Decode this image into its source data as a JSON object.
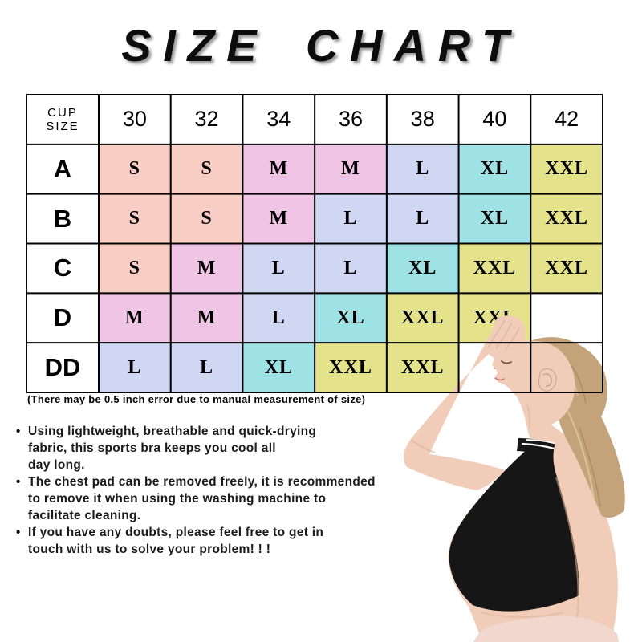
{
  "title": "SIZE CHART",
  "chart_data": {
    "type": "table",
    "title": "SIZE CHART",
    "corner_label": {
      "line1": "CUP",
      "line2": "SIZE"
    },
    "columns": [
      "30",
      "32",
      "34",
      "36",
      "38",
      "40",
      "42"
    ],
    "rows": [
      {
        "cup": "A",
        "cells": [
          "S",
          "S",
          "M",
          "M",
          "L",
          "XL",
          "XXL"
        ]
      },
      {
        "cup": "B",
        "cells": [
          "S",
          "S",
          "M",
          "L",
          "L",
          "XL",
          "XXL"
        ]
      },
      {
        "cup": "C",
        "cells": [
          "S",
          "M",
          "L",
          "L",
          "XL",
          "XXL",
          "XXL"
        ]
      },
      {
        "cup": "D",
        "cells": [
          "M",
          "M",
          "L",
          "XL",
          "XXL",
          "XXL",
          ""
        ]
      },
      {
        "cup": "DD",
        "cells": [
          "L",
          "L",
          "XL",
          "XXL",
          "XXL",
          "",
          ""
        ]
      }
    ],
    "size_colors": {
      "S": "#F8CDC4",
      "M": "#EFC4E4",
      "L": "#CFD7F2",
      "XL": "#9FE2E6",
      "XXL": "#E5E28C"
    }
  },
  "footnote": "(There may be 0.5 inch error due to manual measurement of size)",
  "bullet_char": "•",
  "bullets": [
    {
      "lines": [
        "Using lightweight, breathable and quick-drying",
        "fabric, this sports bra keeps you cool all",
        "day long."
      ]
    },
    {
      "lines": [
        "The chest pad can be removed freely, it is recommended",
        "to remove it when using the washing machine to",
        "facilitate cleaning."
      ]
    },
    {
      "lines": [
        "If you have any doubts, please feel free to get in",
        "touch with us to solve your problem! ! !"
      ]
    }
  ],
  "figure_colors": {
    "skin": "#F1CDB9",
    "skin_shade": "#DCAD93",
    "hair": "#C4A37A",
    "hair_dark": "#AD8B60",
    "hair_light": "#DCC298",
    "bra": "#161616",
    "leggings": "#F2D7CE",
    "face_line": "#6b4f3f",
    "lip": "#C4766B"
  },
  "grid_color": "#000000"
}
